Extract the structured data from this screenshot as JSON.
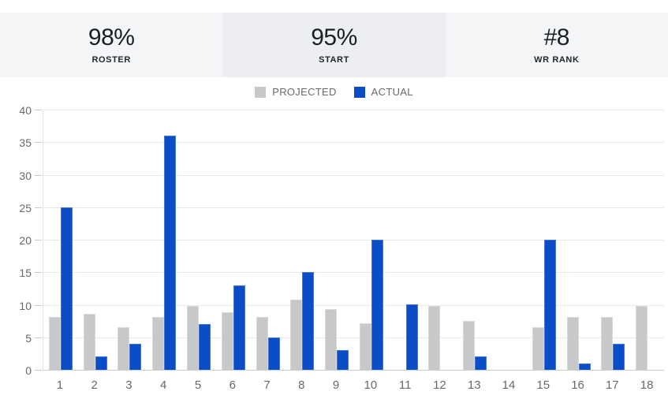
{
  "stats": {
    "items": [
      {
        "value": "98%",
        "label": "ROSTER",
        "highlighted": false
      },
      {
        "value": "95%",
        "label": "START",
        "highlighted": true
      },
      {
        "value": "#8",
        "label": "WR RANK",
        "highlighted": false
      }
    ]
  },
  "chart_data": {
    "type": "bar",
    "title": "",
    "xlabel": "",
    "ylabel": "",
    "categories": [
      "1",
      "2",
      "3",
      "4",
      "5",
      "6",
      "7",
      "8",
      "9",
      "10",
      "11",
      "12",
      "13",
      "14",
      "15",
      "16",
      "17",
      "18"
    ],
    "series": [
      {
        "name": "PROJECTED",
        "color": "#c6c8ca",
        "border_color": "#d8dadc",
        "values": [
          8.1,
          8.6,
          6.6,
          8.1,
          9.8,
          8.8,
          8.1,
          10.8,
          9.3,
          7.2,
          null,
          9.8,
          7.5,
          null,
          6.5,
          8.1,
          8.1,
          9.8
        ]
      },
      {
        "name": "ACTUAL",
        "color": "#0b4dc7",
        "border_color": "#4a78d6",
        "values": [
          25,
          2,
          4,
          36,
          7,
          13,
          5,
          15,
          3,
          20,
          10,
          null,
          2,
          null,
          20,
          1,
          4,
          null
        ]
      }
    ],
    "ylim": [
      0,
      40
    ],
    "ytick_step": 5,
    "grid": true,
    "legend_position": "top",
    "colors": {
      "gridline": "#e8e9eb",
      "axis_line": "#c7cacd",
      "axis_text": "#66696e"
    }
  }
}
